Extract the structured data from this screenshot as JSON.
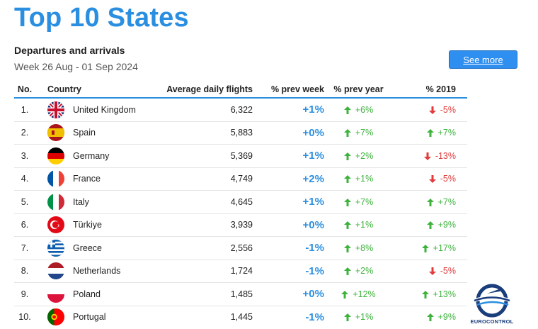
{
  "header": {
    "title": "Top 10 States",
    "subtitle": "Departures and arrivals",
    "period": "Week 26 Aug - 01 Sep 2024",
    "see_more": "See more"
  },
  "table": {
    "columns": [
      "No.",
      "Country",
      "Average daily flights",
      "% prev week",
      "% prev year",
      "% 2019"
    ],
    "rows": [
      {
        "no": "1.",
        "country": "United Kingdom",
        "avg": "6,322",
        "week": "+1%",
        "year": "+6%",
        "year_dir": "up",
        "y2019": "-5%",
        "y2019_dir": "down"
      },
      {
        "no": "2.",
        "country": "Spain",
        "avg": "5,883",
        "week": "+0%",
        "year": "+7%",
        "year_dir": "up",
        "y2019": "+7%",
        "y2019_dir": "up"
      },
      {
        "no": "3.",
        "country": "Germany",
        "avg": "5,369",
        "week": "+1%",
        "year": "+2%",
        "year_dir": "up",
        "y2019": "-13%",
        "y2019_dir": "down"
      },
      {
        "no": "4.",
        "country": "France",
        "avg": "4,749",
        "week": "+2%",
        "year": "+1%",
        "year_dir": "up",
        "y2019": "-5%",
        "y2019_dir": "down"
      },
      {
        "no": "5.",
        "country": "Italy",
        "avg": "4,645",
        "week": "+1%",
        "year": "+7%",
        "year_dir": "up",
        "y2019": "+7%",
        "y2019_dir": "up"
      },
      {
        "no": "6.",
        "country": "Türkiye",
        "avg": "3,939",
        "week": "+0%",
        "year": "+1%",
        "year_dir": "up",
        "y2019": "+9%",
        "y2019_dir": "up"
      },
      {
        "no": "7.",
        "country": "Greece",
        "avg": "2,556",
        "week": "-1%",
        "year": "+8%",
        "year_dir": "up",
        "y2019": "+17%",
        "y2019_dir": "up"
      },
      {
        "no": "8.",
        "country": "Netherlands",
        "avg": "1,724",
        "week": "-1%",
        "year": "+2%",
        "year_dir": "up",
        "y2019": "-5%",
        "y2019_dir": "down"
      },
      {
        "no": "9.",
        "country": "Poland",
        "avg": "1,485",
        "week": "+0%",
        "year": "+12%",
        "year_dir": "up",
        "y2019": "+13%",
        "y2019_dir": "up"
      },
      {
        "no": "10.",
        "country": "Portugal",
        "avg": "1,445",
        "week": "-1%",
        "year": "+1%",
        "year_dir": "up",
        "y2019": "+9%",
        "y2019_dir": "up"
      }
    ]
  },
  "logo": {
    "text": "EUROCONTROL"
  },
  "colors": {
    "accent": "#2a8fe0",
    "up": "#3db33d",
    "down": "#e23b3b",
    "logo": "#1a3d7c"
  }
}
